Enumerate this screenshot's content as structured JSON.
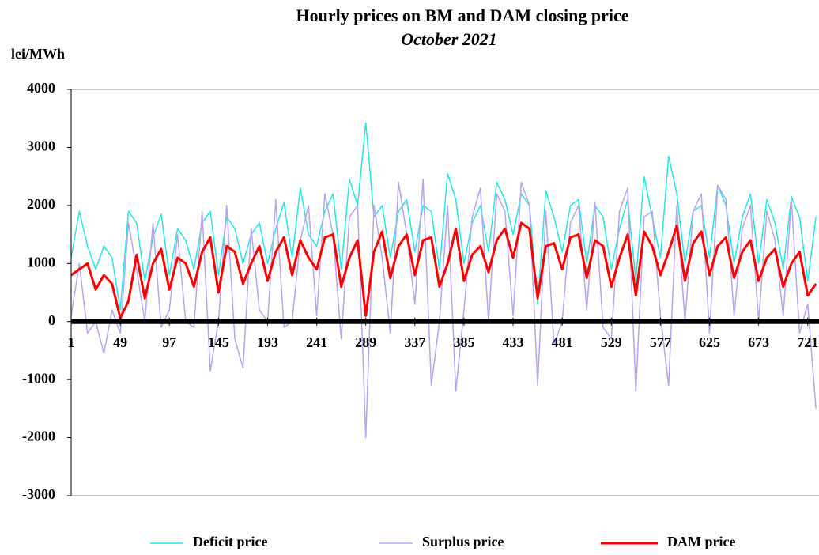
{
  "chart_data": {
    "type": "line",
    "title": "Hourly  prices on BM and DAM closing price",
    "subtitle": "October 2021",
    "y_label": "lei/MWh",
    "x": [
      1,
      9,
      17,
      25,
      33,
      41,
      49,
      57,
      65,
      73,
      81,
      89,
      97,
      105,
      113,
      121,
      129,
      137,
      145,
      153,
      161,
      169,
      177,
      185,
      193,
      201,
      209,
      217,
      225,
      233,
      241,
      249,
      257,
      265,
      273,
      281,
      289,
      297,
      305,
      313,
      321,
      329,
      337,
      345,
      353,
      361,
      369,
      377,
      385,
      393,
      401,
      409,
      417,
      425,
      433,
      441,
      449,
      457,
      465,
      473,
      481,
      489,
      497,
      505,
      513,
      521,
      529,
      537,
      545,
      553,
      561,
      569,
      577,
      585,
      593,
      601,
      609,
      617,
      625,
      633,
      641,
      649,
      657,
      665,
      673,
      681,
      689,
      697,
      705,
      713,
      721,
      729
    ],
    "series": [
      {
        "name": "Deficit price",
        "color": "#22e8e8",
        "width": 1.5,
        "values": [
          1100,
          1900,
          1300,
          900,
          1300,
          1100,
          200,
          1900,
          1700,
          700,
          1450,
          1850,
          800,
          1600,
          1400,
          900,
          1700,
          1900,
          800,
          1800,
          1600,
          1000,
          1500,
          1700,
          1000,
          1600,
          2050,
          1100,
          2300,
          1500,
          1300,
          1900,
          2200,
          900,
          2450,
          2000,
          3420,
          1800,
          2000,
          1100,
          1900,
          2100,
          1200,
          2000,
          1900,
          900,
          2550,
          2100,
          1000,
          1700,
          2000,
          1200,
          2400,
          2100,
          1500,
          2200,
          2000,
          300,
          2250,
          1800,
          1200,
          2000,
          2100,
          1000,
          2000,
          1800,
          900,
          1600,
          2100,
          700,
          2500,
          1800,
          1100,
          2850,
          2200,
          1000,
          1900,
          2000,
          1100,
          2350,
          2000,
          1000,
          1800,
          2200,
          1000,
          2100,
          1700,
          900,
          2150,
          1800,
          700,
          1800
        ]
      },
      {
        "name": "Surplus price",
        "color": "#b9a2f0",
        "width": 1.5,
        "values": [
          100,
          1000,
          -200,
          0,
          -550,
          200,
          -200,
          1700,
          900,
          0,
          1700,
          -100,
          200,
          1500,
          0,
          -100,
          1900,
          -850,
          0,
          2000,
          -300,
          -800,
          1600,
          200,
          0,
          2100,
          -100,
          0,
          1400,
          2000,
          100,
          2200,
          1500,
          -300,
          1800,
          2000,
          -2000,
          2000,
          1100,
          -200,
          2400,
          1500,
          300,
          2450,
          -1100,
          0,
          2000,
          -1200,
          200,
          1800,
          2300,
          0,
          2200,
          1900,
          100,
          2400,
          2000,
          -1100,
          1900,
          -400,
          0,
          1700,
          2000,
          200,
          2050,
          -100,
          -300,
          1900,
          2300,
          -1200,
          1800,
          1900,
          100,
          -1100,
          2000,
          0,
          1900,
          2200,
          -200,
          2350,
          2100,
          100,
          1600,
          2000,
          0,
          1900,
          1400,
          100,
          2100,
          -200,
          300,
          -1500
        ]
      },
      {
        "name": "DAM price",
        "color": "#ff0000",
        "width": 3,
        "values": [
          800,
          900,
          1000,
          550,
          800,
          650,
          60,
          350,
          1150,
          400,
          1000,
          1250,
          550,
          1100,
          1000,
          600,
          1200,
          1450,
          500,
          1300,
          1200,
          650,
          1000,
          1300,
          700,
          1200,
          1450,
          800,
          1400,
          1100,
          900,
          1450,
          1500,
          600,
          1100,
          1400,
          100,
          1200,
          1550,
          750,
          1300,
          1500,
          800,
          1400,
          1450,
          600,
          1000,
          1600,
          700,
          1150,
          1300,
          850,
          1400,
          1600,
          1100,
          1700,
          1600,
          400,
          1300,
          1350,
          900,
          1450,
          1500,
          750,
          1400,
          1300,
          600,
          1100,
          1500,
          450,
          1550,
          1300,
          800,
          1200,
          1650,
          700,
          1350,
          1550,
          800,
          1300,
          1450,
          750,
          1200,
          1400,
          700,
          1100,
          1250,
          600,
          1000,
          1200,
          450,
          650
        ]
      }
    ],
    "xlim": [
      1,
      732
    ],
    "xticks": [
      1,
      49,
      97,
      145,
      193,
      241,
      289,
      337,
      385,
      433,
      481,
      529,
      577,
      625,
      673,
      721
    ],
    "ylim": [
      -3000,
      4000
    ],
    "yticks": [
      -3000,
      -2000,
      -1000,
      0,
      1000,
      2000,
      3000,
      4000
    ],
    "grid": false
  }
}
